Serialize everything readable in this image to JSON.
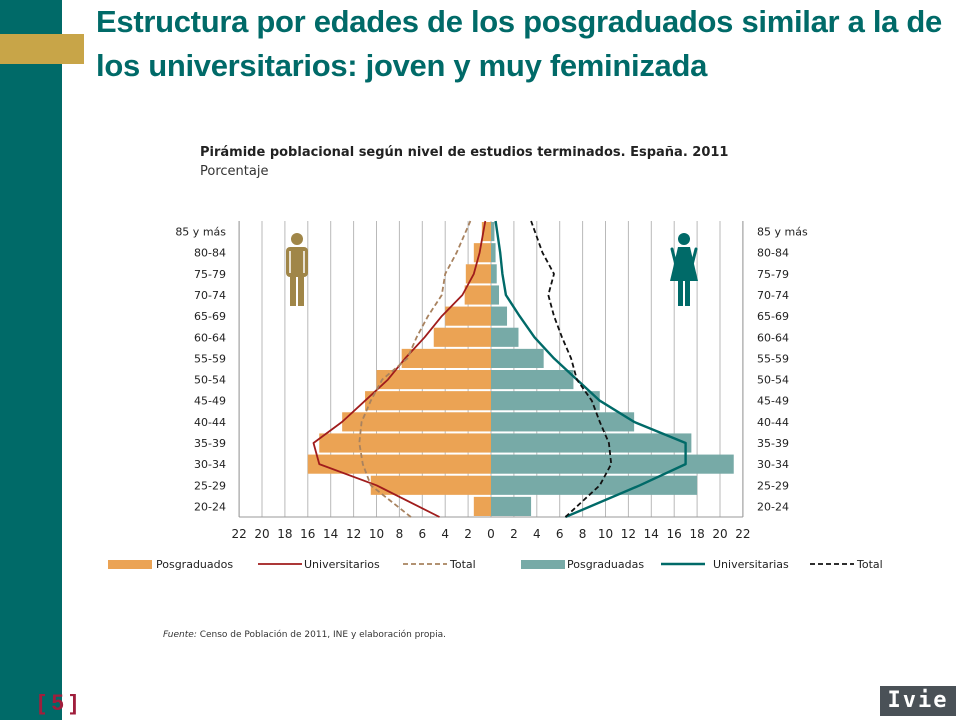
{
  "slide": {
    "title": "Estructura por edades de los posgraduados similar a la de los universitarios: joven y muy feminizada",
    "page_number": "[ 5 ]",
    "logo_text": "Ivie",
    "source_label": "Fuente:",
    "source_text": " Censo de Población de 2011, INE y elaboración propia."
  },
  "colors": {
    "brand_teal": "#006a68",
    "accent_gold": "#c8a548",
    "male_bar": "#eba354",
    "female_bar": "#77aaa7",
    "male_line": "#a01c1c",
    "female_line": "#006a68",
    "male_total": "#a8825f",
    "female_total": "#111111",
    "male_icon": "#a08648",
    "female_icon": "#006a68"
  },
  "chart_data": {
    "type": "bar",
    "subtype": "population-pyramid",
    "title": "Pirámide poblacional según nivel de estudios terminados. España. 2011",
    "subtitle": "Porcentaje",
    "categories": [
      "20-24",
      "25-29",
      "30-34",
      "35-39",
      "40-44",
      "45-49",
      "50-54",
      "55-59",
      "60-64",
      "65-69",
      "70-74",
      "75-79",
      "80-84",
      "85 y más"
    ],
    "x_ticks": [
      "22",
      "20",
      "18",
      "16",
      "14",
      "12",
      "10",
      "8",
      "6",
      "4",
      "2",
      "0",
      "2",
      "4",
      "6",
      "8",
      "10",
      "12",
      "14",
      "16",
      "18",
      "20",
      "22"
    ],
    "xlim": [
      -22,
      22
    ],
    "grid": true,
    "icons": {
      "left": "man-icon",
      "right": "woman-icon"
    },
    "series": [
      {
        "name": "Posgraduados",
        "side": "left",
        "kind": "bar",
        "values": [
          1.5,
          10.5,
          16.0,
          15.0,
          13.0,
          11.0,
          10.0,
          7.8,
          5.0,
          4.0,
          2.3,
          2.2,
          1.5,
          0.8
        ]
      },
      {
        "name": "Universitarios",
        "side": "left",
        "kind": "line",
        "values": [
          4.5,
          10.0,
          15.0,
          15.5,
          13.0,
          11.0,
          9.0,
          7.5,
          5.8,
          4.3,
          2.5,
          1.5,
          1.0,
          0.5
        ]
      },
      {
        "name": "Total",
        "side": "left",
        "kind": "dashed",
        "values": [
          7.0,
          10.5,
          11.2,
          11.5,
          11.3,
          10.5,
          9.5,
          7.3,
          6.5,
          5.5,
          4.3,
          4.0,
          3.0,
          1.8
        ]
      },
      {
        "name": "Posgraduadas",
        "side": "right",
        "kind": "bar",
        "values": [
          3.5,
          18.0,
          21.2,
          17.5,
          12.5,
          9.5,
          7.2,
          4.6,
          2.4,
          1.4,
          0.7,
          0.5,
          0.4,
          0.3
        ]
      },
      {
        "name": "Universitarias",
        "side": "right",
        "kind": "line",
        "values": [
          6.5,
          13.0,
          17.0,
          17.0,
          12.5,
          9.5,
          7.5,
          5.5,
          3.8,
          2.5,
          1.3,
          1.0,
          0.8,
          0.4
        ]
      },
      {
        "name": "Total",
        "side": "right",
        "kind": "dashed",
        "values": [
          6.5,
          9.5,
          10.5,
          10.3,
          9.5,
          8.8,
          7.5,
          7.0,
          6.2,
          5.5,
          5.0,
          5.5,
          4.5,
          3.5
        ]
      }
    ]
  }
}
